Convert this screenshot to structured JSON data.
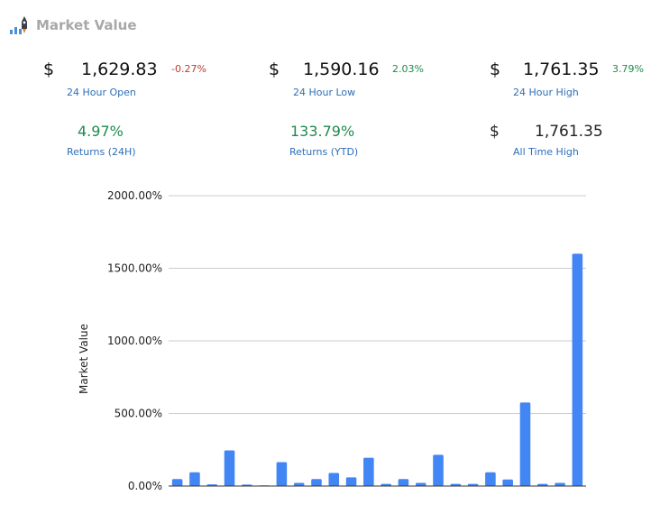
{
  "header": {
    "title": "Market Value",
    "logo_icon": "rocket-chart-icon"
  },
  "stats": {
    "open": {
      "currency": "$",
      "value": "1,629.83",
      "change": "-0.27%",
      "label": "24 Hour Open"
    },
    "low": {
      "currency": "$",
      "value": "1,590.16",
      "change": "2.03%",
      "label": "24 Hour Low"
    },
    "high": {
      "currency": "$",
      "value": "1,761.35",
      "change": "3.79%",
      "label": "24 Hour High"
    },
    "ret24": {
      "value": "4.97%",
      "label": "Returns (24H)"
    },
    "retytd": {
      "value": "133.79%",
      "label": "Returns (YTD)"
    },
    "ath": {
      "currency": "$",
      "value": "1,761.35",
      "label": "All Time High"
    }
  },
  "colors": {
    "bar": "#4285f4",
    "positive": "#1e8a4c",
    "negative": "#c0392b",
    "label": "#2e6fb8"
  },
  "chart_data": {
    "type": "bar",
    "ylabel": "Market Value",
    "ylim": [
      0,
      2000
    ],
    "yticks": [
      "0.00%",
      "500.00%",
      "1000.00%",
      "1500.00%",
      "2000.00%"
    ],
    "ytick_values": [
      0,
      500,
      1000,
      1500,
      2000
    ],
    "grid": true,
    "values": [
      48,
      95,
      12,
      245,
      10,
      5,
      165,
      22,
      48,
      90,
      60,
      195,
      15,
      48,
      22,
      215,
      15,
      15,
      95,
      45,
      575,
      15,
      22,
      1600
    ]
  }
}
